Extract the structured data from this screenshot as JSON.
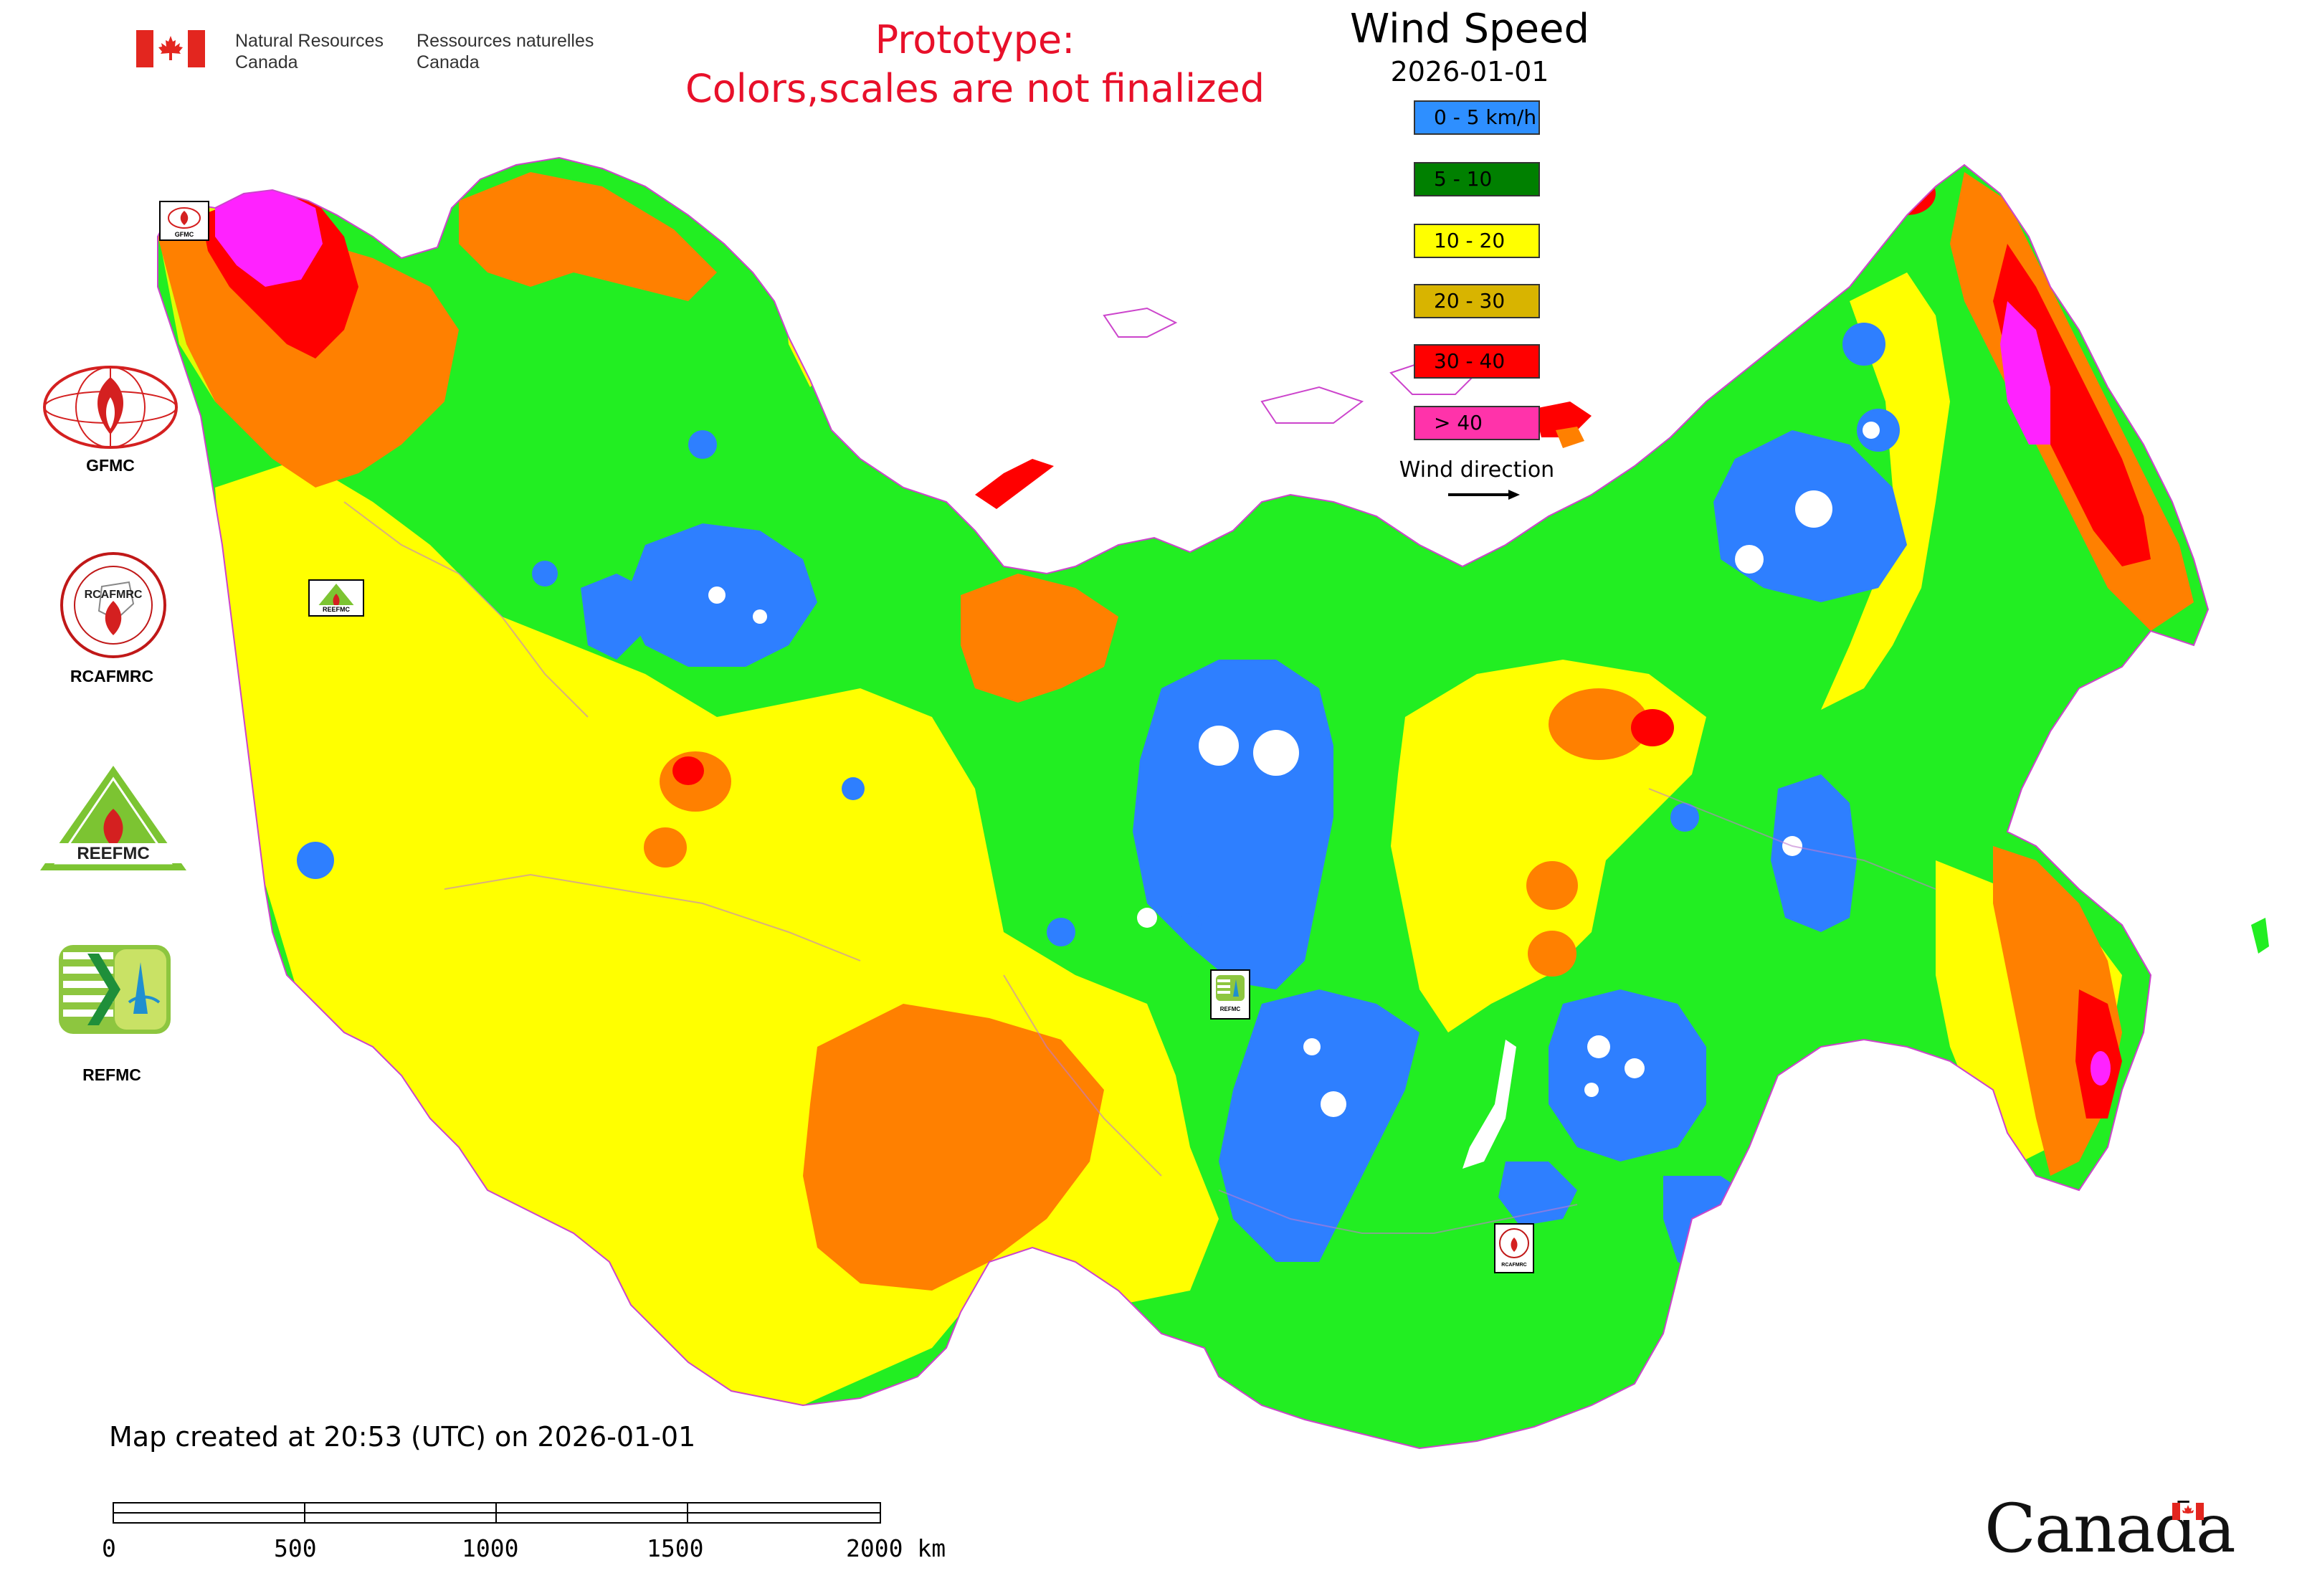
{
  "header": {
    "gov_en_line1": "Natural Resources",
    "gov_en_line2": "Canada",
    "gov_fr_line1": "Ressources naturelles",
    "gov_fr_line2": "Canada",
    "prototype_line1": "Prototype:",
    "prototype_line2": "Colors,scales are not finalized"
  },
  "legend": {
    "title": "Wind Speed",
    "date": "2026-01-01",
    "items": [
      {
        "label": "0 - 5 km/h",
        "color": "#2e8fff"
      },
      {
        "label": "5 - 10",
        "color": "#008000"
      },
      {
        "label": "10 - 20",
        "color": "#ffff00"
      },
      {
        "label": "20 - 30",
        "color": "#d8b400"
      },
      {
        "label": "30 - 40",
        "color": "#ff0000"
      },
      {
        "label": "> 40",
        "color": "#ff33aa"
      }
    ],
    "wind_direction_label": "Wind direction"
  },
  "map_colors": {
    "calm": "#2e7fff",
    "light": "#22ee22",
    "moderate": "#ffff00",
    "strong": "#ff8000",
    "very_strong": "#ff0000",
    "extreme": "#ff22ff"
  },
  "logos": {
    "gfmc_label": "GFMC",
    "rcafmrc_label": "RCAFMRC",
    "reefmc_label": "REEFMC",
    "refmc_label": "REFMC",
    "map_badge_gfmc": "GFMC",
    "map_badge_reefmc": "REEFMC",
    "map_badge_refmc": "REFMC",
    "map_badge_rcafmrc": "RCAFMRC"
  },
  "footer": {
    "created": "Map created at 20:53 (UTC) on 2026-01-01",
    "scale_ticks": [
      "0",
      "500",
      "1000",
      "1500",
      "2000 km"
    ],
    "wordmark": "Canada"
  }
}
